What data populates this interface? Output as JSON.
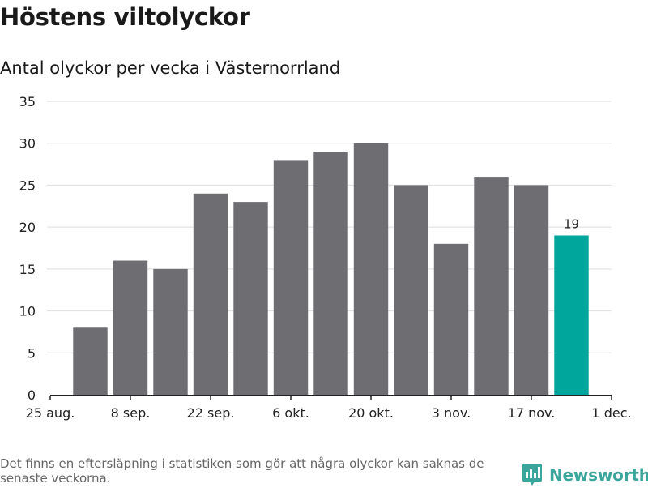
{
  "header": {
    "title": "Höstens viltolyckor",
    "subtitle": "Antal olyckor per vecka i Västernorrland"
  },
  "chart_data": {
    "type": "bar",
    "title": "Höstens viltolyckor",
    "subtitle": "Antal olyckor per vecka i Västernorrland",
    "xlabel": "",
    "ylabel": "",
    "ylim": [
      0,
      35
    ],
    "yticks": [
      0,
      5,
      10,
      15,
      20,
      25,
      30,
      35
    ],
    "grid": true,
    "x_date_range": [
      "2019-08-25",
      "2019-12-01"
    ],
    "xticks": [
      {
        "date": "2019-08-25",
        "label": "25 aug."
      },
      {
        "date": "2019-09-08",
        "label": "8 sep."
      },
      {
        "date": "2019-09-22",
        "label": "22 sep."
      },
      {
        "date": "2019-10-06",
        "label": "6 okt."
      },
      {
        "date": "2019-10-20",
        "label": "20 okt."
      },
      {
        "date": "2019-11-03",
        "label": "3 nov."
      },
      {
        "date": "2019-11-17",
        "label": "17 nov."
      },
      {
        "date": "2019-12-01",
        "label": "1 dec."
      }
    ],
    "bars": [
      {
        "week_start": "2019-08-29",
        "value": 8
      },
      {
        "week_start": "2019-09-05",
        "value": 16
      },
      {
        "week_start": "2019-09-12",
        "value": 15
      },
      {
        "week_start": "2019-09-19",
        "value": 24
      },
      {
        "week_start": "2019-09-26",
        "value": 23
      },
      {
        "week_start": "2019-10-03",
        "value": 28
      },
      {
        "week_start": "2019-10-10",
        "value": 29
      },
      {
        "week_start": "2019-10-17",
        "value": 30
      },
      {
        "week_start": "2019-10-24",
        "value": 25
      },
      {
        "week_start": "2019-10-31",
        "value": 18
      },
      {
        "week_start": "2019-11-07",
        "value": 26
      },
      {
        "week_start": "2019-11-14",
        "value": 25
      },
      {
        "week_start": "2019-11-21",
        "value": 19,
        "highlight": true,
        "label": "19"
      }
    ],
    "colors": {
      "bar": "#6e6d72",
      "highlight": "#00a59b",
      "grid": "#dddddd",
      "axis": "#222222",
      "tick_text": "#222222"
    }
  },
  "footer": {
    "note": "Det finns en eftersläpning i statistiken som gör att några olyckor kan saknas de senaste veckorna.",
    "brand": "Newsworthy",
    "brand_color": "#3aa59b",
    "brand_icon": "bar-chart-logo-icon"
  }
}
